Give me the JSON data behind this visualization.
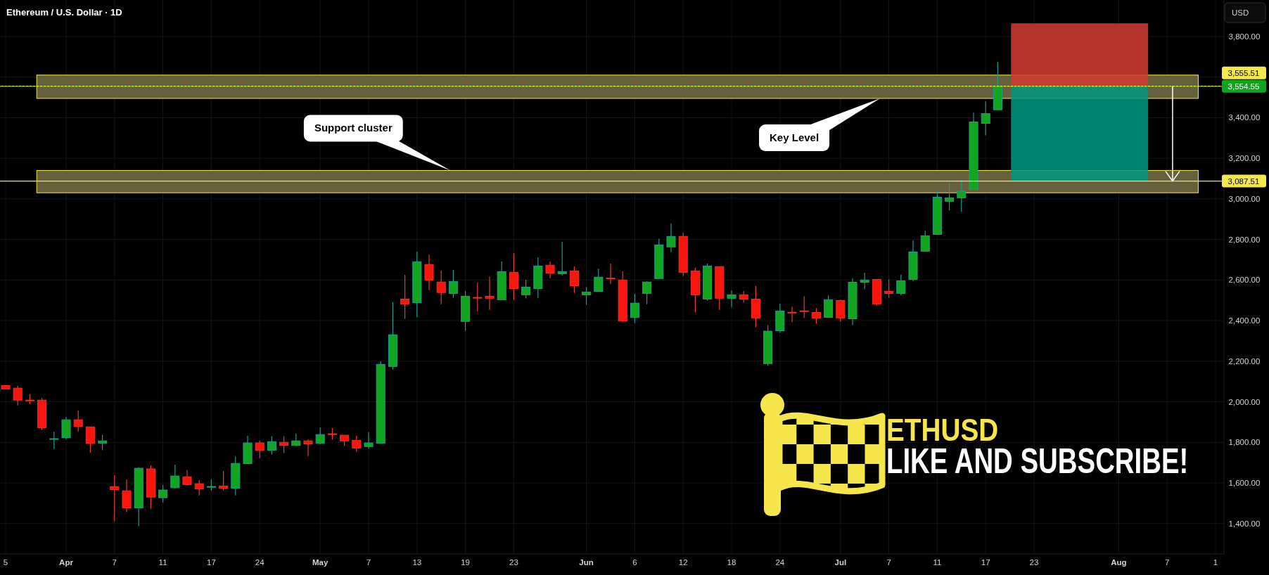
{
  "chart_data": {
    "type": "candlestick",
    "title": "Ethereum / U.S. Dollar · 1D",
    "ylabel": "USD",
    "categories": [
      "5",
      null,
      null,
      null,
      null,
      "Apr",
      null,
      null,
      null,
      "7",
      null,
      null,
      null,
      "11",
      null,
      null,
      null,
      "17",
      null,
      null,
      null,
      "24",
      null,
      null,
      null,
      null,
      "May",
      null,
      null,
      null,
      "7",
      null,
      null,
      null,
      "13",
      null,
      null,
      null,
      "19",
      null,
      null,
      null,
      "23",
      null,
      null,
      null,
      null,
      null,
      "Jun",
      null,
      null,
      null,
      "6",
      null,
      null,
      null,
      "12",
      null,
      null,
      null,
      "18",
      null,
      null,
      null,
      "24",
      null,
      null,
      null,
      null,
      "Jul",
      null,
      null,
      null,
      "7",
      null,
      null,
      null,
      "11",
      null,
      null,
      null,
      "17",
      null,
      null,
      null,
      "23",
      null,
      null,
      null,
      null,
      null,
      null,
      "Aug",
      null,
      null,
      null,
      "7",
      null,
      null,
      null,
      "1"
    ],
    "ohlc": [
      [
        2080,
        2080,
        2063,
        2063
      ],
      [
        2067,
        2078,
        1982,
        2008
      ],
      [
        2008,
        2037,
        1989,
        2006
      ],
      [
        2008,
        2019,
        1861,
        1872
      ],
      [
        1816,
        1853,
        1767,
        1818
      ],
      [
        1823,
        1925,
        1815,
        1911
      ],
      [
        1911,
        1957,
        1853,
        1879
      ],
      [
        1876,
        1876,
        1749,
        1795
      ],
      [
        1796,
        1836,
        1761,
        1807
      ],
      [
        1582,
        1638,
        1410,
        1567
      ],
      [
        1561,
        1617,
        1456,
        1477
      ],
      [
        1477,
        1677,
        1387,
        1672
      ],
      [
        1669,
        1686,
        1472,
        1530
      ],
      [
        1527,
        1590,
        1503,
        1565
      ],
      [
        1576,
        1690,
        1573,
        1634
      ],
      [
        1630,
        1663,
        1588,
        1592
      ],
      [
        1596,
        1614,
        1538,
        1570
      ],
      [
        1579,
        1618,
        1562,
        1582
      ],
      [
        1585,
        1659,
        1562,
        1574
      ],
      [
        1574,
        1729,
        1538,
        1696
      ],
      [
        1695,
        1832,
        1695,
        1797
      ],
      [
        1797,
        1808,
        1722,
        1761
      ],
      [
        1761,
        1829,
        1739,
        1803
      ],
      [
        1800,
        1829,
        1746,
        1785
      ],
      [
        1785,
        1843,
        1780,
        1807
      ],
      [
        1807,
        1815,
        1732,
        1792
      ],
      [
        1795,
        1874,
        1791,
        1838
      ],
      [
        1842,
        1870,
        1813,
        1840
      ],
      [
        1835,
        1835,
        1782,
        1807
      ],
      [
        1810,
        1832,
        1754,
        1772
      ],
      [
        1779,
        1850,
        1768,
        1797
      ],
      [
        1795,
        2199,
        1795,
        2184
      ],
      [
        2174,
        2490,
        2159,
        2330
      ],
      [
        2506,
        2625,
        2408,
        2481
      ],
      [
        2488,
        2740,
        2417,
        2690
      ],
      [
        2676,
        2726,
        2550,
        2600
      ],
      [
        2590,
        2646,
        2481,
        2538
      ],
      [
        2534,
        2650,
        2512,
        2593
      ],
      [
        2396,
        2546,
        2349,
        2520
      ],
      [
        2514,
        2587,
        2446,
        2512
      ],
      [
        2520,
        2618,
        2453,
        2510
      ],
      [
        2503,
        2691,
        2503,
        2641
      ],
      [
        2638,
        2733,
        2502,
        2558
      ],
      [
        2527,
        2601,
        2509,
        2565
      ],
      [
        2558,
        2712,
        2512,
        2669
      ],
      [
        2673,
        2691,
        2609,
        2634
      ],
      [
        2631,
        2788,
        2623,
        2641
      ],
      [
        2645,
        2667,
        2536,
        2572
      ],
      [
        2527,
        2566,
        2477,
        2541
      ],
      [
        2544,
        2656,
        2544,
        2614
      ],
      [
        2609,
        2681,
        2581,
        2606
      ],
      [
        2600,
        2643,
        2394,
        2398
      ],
      [
        2415,
        2532,
        2387,
        2486
      ],
      [
        2534,
        2593,
        2481,
        2590
      ],
      [
        2607,
        2804,
        2607,
        2773
      ],
      [
        2763,
        2878,
        2737,
        2815
      ],
      [
        2815,
        2833,
        2619,
        2638
      ],
      [
        2645,
        2660,
        2439,
        2527
      ],
      [
        2506,
        2681,
        2498,
        2669
      ],
      [
        2666,
        2666,
        2453,
        2510
      ],
      [
        2510,
        2549,
        2467,
        2527
      ],
      [
        2527,
        2546,
        2488,
        2506
      ],
      [
        2506,
        2570,
        2367,
        2413
      ],
      [
        2188,
        2378,
        2177,
        2348
      ],
      [
        2350,
        2483,
        2340,
        2447
      ],
      [
        2441,
        2468,
        2392,
        2439
      ],
      [
        2448,
        2520,
        2413,
        2446
      ],
      [
        2440,
        2461,
        2385,
        2413
      ],
      [
        2416,
        2524,
        2416,
        2503
      ],
      [
        2499,
        2503,
        2394,
        2413
      ],
      [
        2409,
        2608,
        2378,
        2589
      ],
      [
        2589,
        2636,
        2557,
        2600
      ],
      [
        2603,
        2603,
        2475,
        2482
      ],
      [
        2544,
        2603,
        2513,
        2534
      ],
      [
        2534,
        2627,
        2524,
        2596
      ],
      [
        2603,
        2795,
        2593,
        2738
      ],
      [
        2742,
        2843,
        2742,
        2818
      ],
      [
        2825,
        3040,
        2825,
        3008
      ],
      [
        2988,
        3081,
        2943,
        3005
      ],
      [
        3005,
        3095,
        2936,
        3038
      ],
      [
        3046,
        3425,
        3046,
        3379
      ],
      [
        3372,
        3480,
        3313,
        3420
      ],
      [
        3439,
        3675,
        3439,
        3554.55
      ],
      null,
      null,
      null,
      null,
      null,
      null,
      null,
      null,
      null,
      null,
      null,
      null,
      null,
      null,
      null,
      null,
      null,
      null
    ],
    "ylim": [
      1250,
      3980
    ],
    "yticks": [
      {
        "value": 1400,
        "label": "1,400.00"
      },
      {
        "value": 1600,
        "label": "1,600.00"
      },
      {
        "value": 1800,
        "label": "1,800.00"
      },
      {
        "value": 2000,
        "label": "2,000.00"
      },
      {
        "value": 2200,
        "label": "2,200.00"
      },
      {
        "value": 2400,
        "label": "2,400.00"
      },
      {
        "value": 2600,
        "label": "2,600.00"
      },
      {
        "value": 2800,
        "label": "2,800.00"
      },
      {
        "value": 3000,
        "label": "3,000.00"
      },
      {
        "value": 3200,
        "label": "3,200.00"
      },
      {
        "value": 3400,
        "label": "3,400.00"
      },
      {
        "value": 3600,
        "label": null
      },
      {
        "value": 3800,
        "label": "3,800.00"
      }
    ],
    "grid": true,
    "bands": [
      {
        "axis": "y",
        "from": 3495,
        "to": 3610,
        "label": "Key Level",
        "color": "#66603d"
      },
      {
        "axis": "y",
        "from": 3030,
        "to": 3140,
        "label": "Support cluster",
        "color": "#66603d"
      },
      {
        "axis": "y",
        "from": 3554.55,
        "to": 3865,
        "color": "#d23b30"
      },
      {
        "axis": "y",
        "from": 3087.51,
        "to": 3554.55,
        "color": "#009682"
      }
    ],
    "ref_lines": [
      {
        "axis": "y",
        "value": 3555.51,
        "label": "3,555.51",
        "color": "#f5e84a",
        "line_style": "solid"
      },
      {
        "axis": "y",
        "value": 3087.51,
        "label": "3,087.51",
        "color": "#f5e84a",
        "line_style": "solid"
      },
      {
        "axis": "y",
        "value": 3554.55,
        "label": "3,554.55",
        "color": "#0fa41f",
        "line_style": "dotted"
      }
    ],
    "annotations": [
      "ETHUSD",
      "LIKE AND SUBSCRIBE!"
    ]
  }
}
